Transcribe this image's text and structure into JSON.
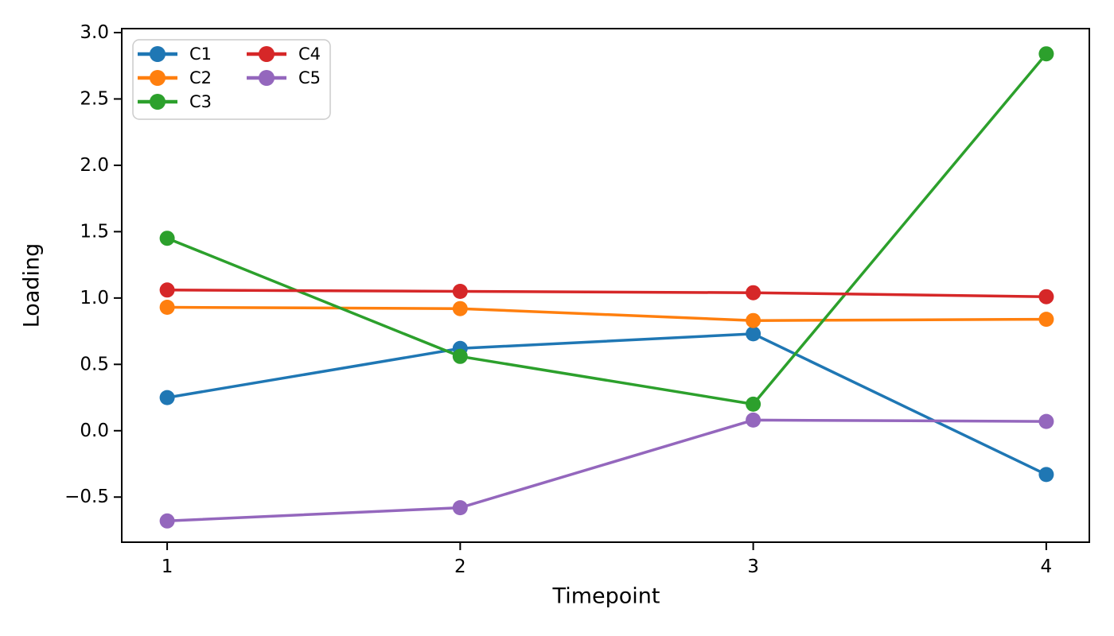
{
  "chart_data": {
    "type": "line",
    "title": "",
    "xlabel": "Timepoint",
    "ylabel": "Loading",
    "x": [
      1,
      2,
      3,
      4
    ],
    "xlim": [
      0.845,
      4.147
    ],
    "ylim": [
      -0.84,
      3.03
    ],
    "grid": false,
    "legend_position": "upper-left",
    "legend_columns": 2,
    "xticks": [
      {
        "value": 1,
        "label": "1"
      },
      {
        "value": 2,
        "label": "2"
      },
      {
        "value": 3,
        "label": "3"
      },
      {
        "value": 4,
        "label": "4"
      }
    ],
    "yticks": [
      {
        "value": 3.0,
        "label": "3.0"
      },
      {
        "value": 2.5,
        "label": "2.5"
      },
      {
        "value": 2.0,
        "label": "2.0"
      },
      {
        "value": 1.5,
        "label": "1.5"
      },
      {
        "value": 1.0,
        "label": "1.0"
      },
      {
        "value": 0.5,
        "label": "0.5"
      },
      {
        "value": 0.0,
        "label": "0.0"
      },
      {
        "value": -0.5,
        "label": "−0.5"
      }
    ],
    "series": [
      {
        "name": "C1",
        "color": "#1f77b4",
        "values": [
          0.25,
          0.62,
          0.73,
          -0.33
        ]
      },
      {
        "name": "C2",
        "color": "#ff7f0e",
        "values": [
          0.93,
          0.92,
          0.83,
          0.84
        ]
      },
      {
        "name": "C3",
        "color": "#2ca02c",
        "values": [
          1.45,
          0.56,
          0.2,
          2.84
        ]
      },
      {
        "name": "C4",
        "color": "#d62728",
        "values": [
          1.06,
          1.05,
          1.04,
          1.01
        ]
      },
      {
        "name": "C5",
        "color": "#9467bd",
        "values": [
          -0.68,
          -0.58,
          0.08,
          0.07
        ]
      }
    ]
  }
}
